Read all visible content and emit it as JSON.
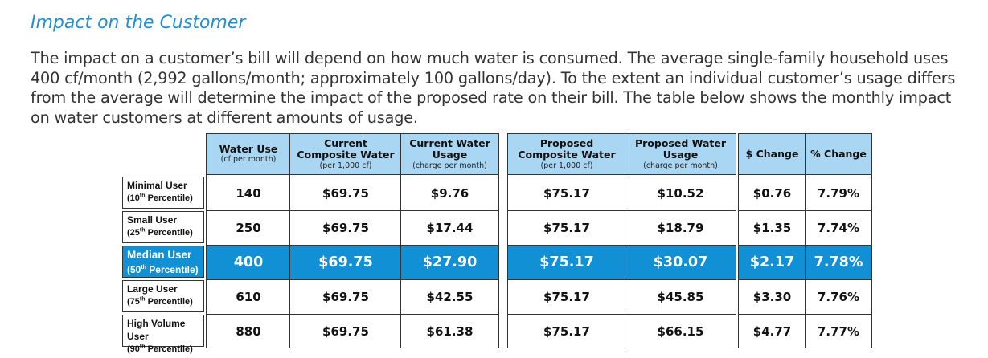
{
  "heading": "Impact on the Customer",
  "paragraph": "The impact on a customer’s bill will depend on how much water is consumed.  The average single-family household uses 400 cf/month (2,992 gallons/month; approximately 100 gallons/day). To the extent an individual customer’s usage differs from the average will determine the impact of the proposed rate on their bill. The table below shows the monthly impact on water customers at different amounts of usage.",
  "table": {
    "columns": [
      {
        "main": "Water Use",
        "sub": "(cf per month)"
      },
      {
        "main": "Current Composite Water",
        "sub": "(per 1,000 cf)"
      },
      {
        "main": "Current Water Usage",
        "sub": "(charge per month)"
      },
      {
        "main": "Proposed Composite Water",
        "sub": "(per 1,000 cf)"
      },
      {
        "main": "Proposed Water Usage",
        "sub": "(charge per month)"
      },
      {
        "main": "$ Change",
        "sub": ""
      },
      {
        "main": "% Change",
        "sub": ""
      }
    ],
    "rows": [
      {
        "label": "Minimal User",
        "pct_num": "(10",
        "pct_sup": "th",
        "pct_rest": " Percentile)",
        "highlight": false,
        "values": [
          "140",
          "$69.75",
          "$9.76",
          "$75.17",
          "$10.52",
          "$0.76",
          "7.79%"
        ]
      },
      {
        "label": "Small User",
        "pct_num": "(25",
        "pct_sup": "th",
        "pct_rest": " Percentile)",
        "highlight": false,
        "values": [
          "250",
          "$69.75",
          "$17.44",
          "$75.17",
          "$18.79",
          "$1.35",
          "7.74%"
        ]
      },
      {
        "label": "Median User",
        "pct_num": "(50",
        "pct_sup": "th",
        "pct_rest": " Percentile)",
        "highlight": true,
        "values": [
          "400",
          "$69.75",
          "$27.90",
          "$75.17",
          "$30.07",
          "$2.17",
          "7.78%"
        ]
      },
      {
        "label": "Large User",
        "pct_num": "(75",
        "pct_sup": "th",
        "pct_rest": " Percentile)",
        "highlight": false,
        "values": [
          "610",
          "$69.75",
          "$42.55",
          "$75.17",
          "$45.85",
          "$3.30",
          "7.76%"
        ]
      },
      {
        "label": "High Volume User",
        "pct_num": "(90",
        "pct_sup": "th",
        "pct_rest": " Percentile)",
        "highlight": false,
        "values": [
          "880",
          "$69.75",
          "$61.38",
          "$75.17",
          "$66.15",
          "$4.77",
          "7.77%"
        ]
      }
    ]
  },
  "colors": {
    "heading": "#1f8fd6",
    "header_fill": "#a9d6f3",
    "highlight_fill": "#1190d6"
  }
}
